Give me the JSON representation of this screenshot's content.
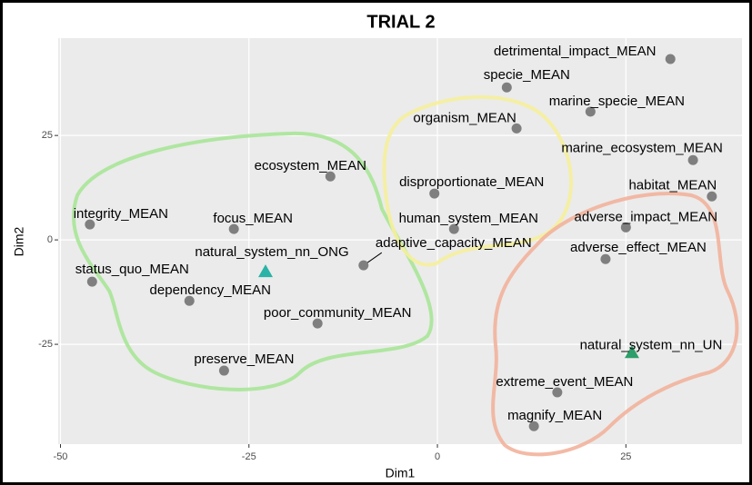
{
  "chart_data": {
    "type": "scatter",
    "title": "TRIAL 2",
    "x_label": "Dim1",
    "y_label": "Dim2",
    "xlim": [
      -50.3,
      40.4
    ],
    "ylim": [
      -48.9,
      48.3
    ],
    "xticks": [
      -50,
      -25,
      0,
      25
    ],
    "yticks": [
      -25,
      0,
      25
    ],
    "grid": true,
    "color": "#7f7f7f",
    "points": [
      {
        "label": "detrimental_impact_MEAN",
        "x": 30.9,
        "y": 43.3
      },
      {
        "label": "specie_MEAN",
        "x": 9.2,
        "y": 36.5
      },
      {
        "label": "marine_specie_MEAN",
        "x": 20.3,
        "y": 30.7
      },
      {
        "label": "organism_MEAN",
        "x": 10.5,
        "y": 26.7
      },
      {
        "label": "marine_ecosystem_MEAN",
        "x": 33.9,
        "y": 19.1
      },
      {
        "label": "ecosystem_MEAN",
        "x": -14.2,
        "y": 15.2
      },
      {
        "label": "disproportionate_MEAN",
        "x": -0.4,
        "y": 11.1
      },
      {
        "label": "habitat_MEAN",
        "x": 36.4,
        "y": 10.4
      },
      {
        "label": "integrity_MEAN",
        "x": -46.1,
        "y": 3.7
      },
      {
        "label": "focus_MEAN",
        "x": -27.0,
        "y": 2.6
      },
      {
        "label": "human_system_MEAN",
        "x": 2.2,
        "y": 2.6
      },
      {
        "label": "adverse_impact_MEAN",
        "x": 25.0,
        "y": 3.0
      },
      {
        "label": "adverse_effect_MEAN",
        "x": 22.3,
        "y": -4.6
      },
      {
        "label": "adaptive_capacity_MEAN",
        "x": -9.8,
        "y": -6.1
      },
      {
        "label": "natural_system_nn_ONG",
        "x": -22.8,
        "y": -7.6,
        "shape": "triangle",
        "color": "#2ab3a6"
      },
      {
        "label": "status_quo_MEAN",
        "x": -45.8,
        "y": -10.0
      },
      {
        "label": "dependency_MEAN",
        "x": -32.9,
        "y": -14.6
      },
      {
        "label": "poor_community_MEAN",
        "x": -15.9,
        "y": -20.0
      },
      {
        "label": "natural_system_nn_UN",
        "x": 25.8,
        "y": -27.0,
        "shape": "triangle",
        "color": "#2e9e6a"
      },
      {
        "label": "preserve_MEAN",
        "x": -28.3,
        "y": -31.3
      },
      {
        "label": "extreme_event_MEAN",
        "x": 15.9,
        "y": -36.5
      },
      {
        "label": "magnify_MEAN",
        "x": 12.8,
        "y": -44.6
      }
    ]
  }
}
